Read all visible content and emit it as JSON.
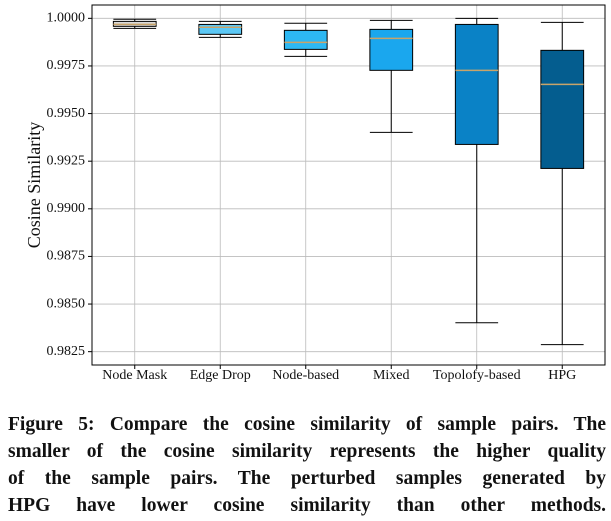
{
  "chart_data": {
    "type": "box",
    "ylabel": "Cosine Similarity",
    "categories": [
      "Node Mask",
      "Edge Drop",
      "Node-based",
      "Mixed",
      "Topolofy-based",
      "HPG"
    ],
    "boxes": [
      {
        "color": "#dcdcdc",
        "whisker_low": 0.99947,
        "q1": 0.99958,
        "median": 0.99968,
        "q3": 0.99984,
        "whisker_high": 0.99995
      },
      {
        "color": "#5cc8f5",
        "whisker_low": 0.999,
        "q1": 0.99916,
        "median": 0.99953,
        "q3": 0.99968,
        "whisker_high": 0.99984
      },
      {
        "color": "#2db8f3",
        "whisker_low": 0.998,
        "q1": 0.99837,
        "median": 0.99874,
        "q3": 0.99937,
        "whisker_high": 0.99974
      },
      {
        "color": "#1aa7ee",
        "whisker_low": 0.99401,
        "q1": 0.99727,
        "median": 0.99895,
        "q3": 0.99942,
        "whisker_high": 0.99989
      },
      {
        "color": "#0a82c6",
        "whisker_low": 0.98402,
        "q1": 0.99338,
        "median": 0.99727,
        "q3": 0.99968,
        "whisker_high": 1.0
      },
      {
        "color": "#045d8f",
        "whisker_low": 0.98287,
        "q1": 0.99212,
        "median": 0.99653,
        "q3": 0.99832,
        "whisker_high": 0.99979
      }
    ],
    "median_color": "#c9a46a",
    "ylim": [
      0.9818,
      1.0007
    ],
    "yticks": [
      {
        "value": 0.9825,
        "label": "0.9825"
      },
      {
        "value": 0.985,
        "label": "0.9850"
      },
      {
        "value": 0.9875,
        "label": "0.9875"
      },
      {
        "value": 0.99,
        "label": "0.9900"
      },
      {
        "value": 0.9925,
        "label": "0.9925"
      },
      {
        "value": 0.995,
        "label": "0.9950"
      },
      {
        "value": 0.9975,
        "label": "0.9975"
      },
      {
        "value": 1.0,
        "label": "1.0000"
      }
    ],
    "grid": true
  },
  "caption": [
    "Figure 5: Compare the cosine similarity of sample pairs. The",
    "smaller of the cosine similarity represents the higher quality",
    "of the sample pairs. The perturbed samples generated by",
    "HPG have lower cosine similarity than other methods."
  ]
}
